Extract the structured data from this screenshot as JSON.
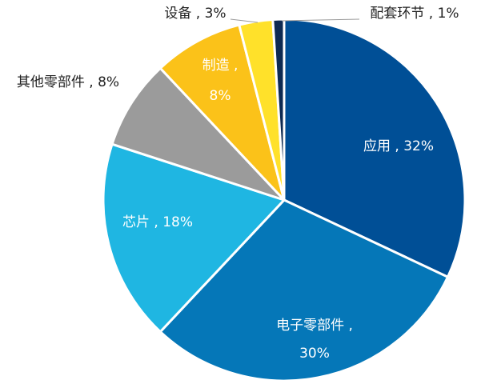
{
  "chart_data": {
    "type": "pie",
    "title": "",
    "slices": [
      {
        "label": "应用",
        "value": 32,
        "display": "应用 , 32%",
        "color": "#004F96",
        "text_color": "#ffffff"
      },
      {
        "label": "电子零部件",
        "value": 30,
        "display": "电子零部件 , 30%",
        "color": "#0577B8",
        "text_color": "#ffffff"
      },
      {
        "label": "芯片",
        "value": 18,
        "display": "芯片 , 18%",
        "color": "#1FB6E2",
        "text_color": "#ffffff"
      },
      {
        "label": "其他零部件",
        "value": 8,
        "display": "其他零部件 , 8%",
        "color": "#9B9B9B",
        "text_color": "#222222"
      },
      {
        "label": "制造",
        "value": 8,
        "display": "制造 , 8%",
        "color": "#FBC219",
        "text_color": "#ffffff"
      },
      {
        "label": "设备",
        "value": 3,
        "display": "设备 , 3%",
        "color": "#FFE12A",
        "text_color": "#222222"
      },
      {
        "label": "配套环节",
        "value": 1,
        "display": "配套环节 , 1%",
        "color": "#0D2A52",
        "text_color": "#222222"
      }
    ],
    "legend": "none",
    "start_angle": "top (12 o'clock), clockwise"
  }
}
